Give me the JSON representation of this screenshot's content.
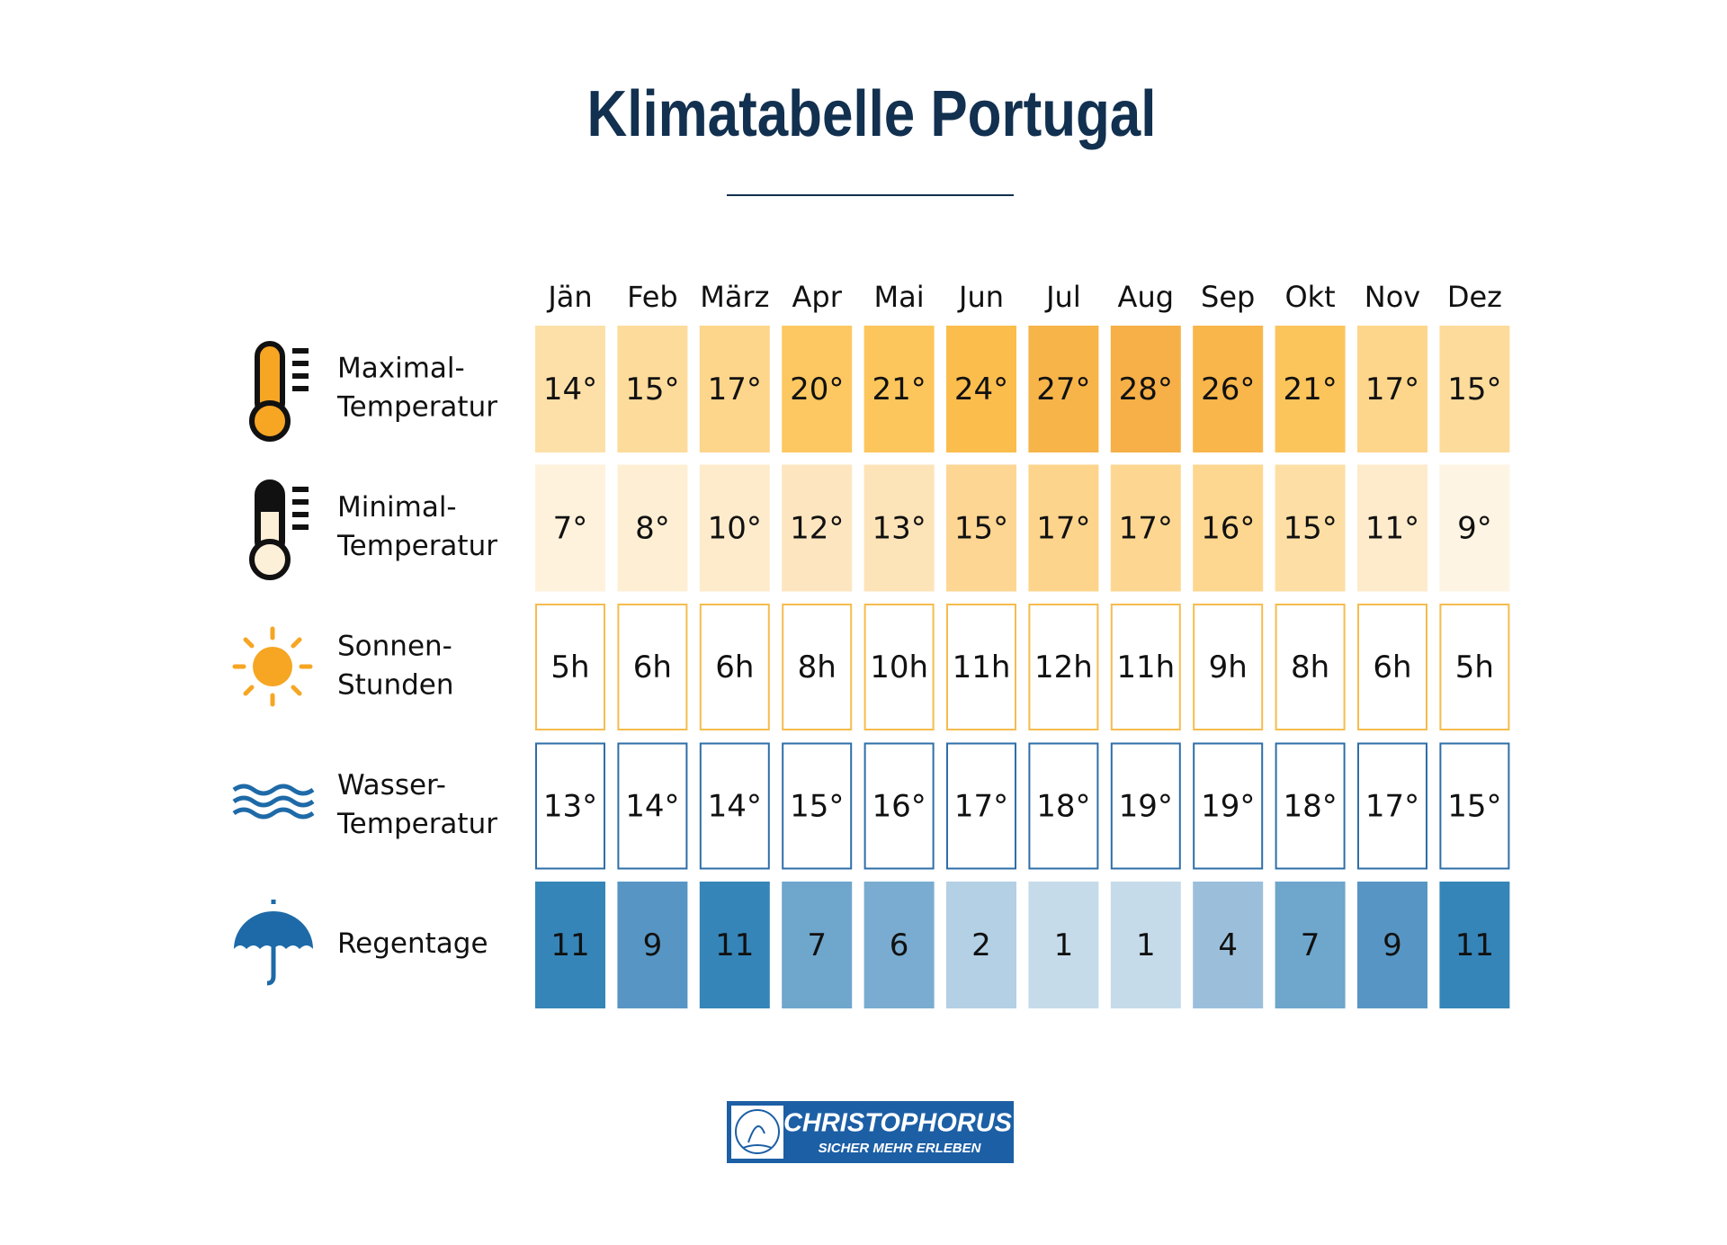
{
  "title": "Klimatabelle Portugal",
  "months": [
    "Jän",
    "Feb",
    "März",
    "Apr",
    "Mai",
    "Jun",
    "Jul",
    "Aug",
    "Sep",
    "Okt",
    "Nov",
    "Dez"
  ],
  "rows": [
    {
      "label": [
        "Maximal-",
        "Temperatur"
      ],
      "cells": [
        "14°",
        "15°",
        "17°",
        "20°",
        "21°",
        "24°",
        "27°",
        "28°",
        "26°",
        "21°",
        "17°",
        "15°"
      ],
      "colors": [
        "#fde0a8",
        "#fddb9b",
        "#fdd58b",
        "#fdc861",
        "#fdc65c",
        "#fbbd4c",
        "#f7b449",
        "#f6b047",
        "#f8b64b",
        "#fcc55c",
        "#fdd58b",
        "#fddb9b"
      ]
    },
    {
      "label": [
        "Minimal-",
        "Temperatur"
      ],
      "cells": [
        "7°",
        "8°",
        "10°",
        "12°",
        "13°",
        "15°",
        "17°",
        "17°",
        "16°",
        "15°",
        "11°",
        "9°"
      ],
      "colors": [
        "#fef2dc",
        "#feefd4",
        "#fdebcb",
        "#fde6bf",
        "#fde3b8",
        "#fdd693",
        "#fdd48c",
        "#fdd792",
        "#fdd78f",
        "#fddfa6",
        "#fdebcb",
        "#fef4e3"
      ]
    },
    {
      "label": [
        "Sonnen-",
        "Stunden"
      ],
      "cells": [
        "5h",
        "6h",
        "6h",
        "8h",
        "10h",
        "11h",
        "12h",
        "11h",
        "9h",
        "8h",
        "6h",
        "5h"
      ],
      "border": "#f5bc4e"
    },
    {
      "label": [
        "Wasser-",
        "Temperatur"
      ],
      "cells": [
        "13°",
        "14°",
        "14°",
        "15°",
        "16°",
        "17°",
        "18°",
        "19°",
        "19°",
        "18°",
        "17°",
        "15°"
      ],
      "border": "#2e6ea8"
    },
    {
      "label": [
        "Regentage"
      ],
      "cells": [
        "11",
        "9",
        "11",
        "7",
        "6",
        "2",
        "1",
        "1",
        "4",
        "7",
        "9",
        "11"
      ],
      "colors": [
        "#3585b8",
        "#5796c4",
        "#3585b8",
        "#6ea6cc",
        "#79acd0",
        "#b3d0e4",
        "#c6dbea",
        "#c6dbea",
        "#9bbfdb",
        "#6ea6cc",
        "#5796c4",
        "#3585b8"
      ]
    }
  ],
  "logo": {
    "name": "CHRISTOPHORUS",
    "slogan": "SICHER MEHR ERLEBEN"
  }
}
